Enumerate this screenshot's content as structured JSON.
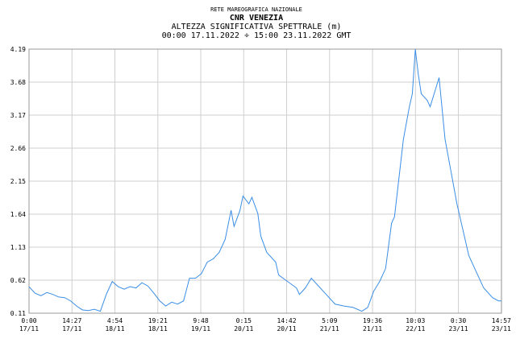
{
  "chart_data": {
    "type": "line",
    "supertitle": "RETE MAREOGRAFICA NAZIONALE",
    "title": "CNR VENEZIA",
    "subtitle": "ALTEZZA SIGNIFICATIVA SPETTRALE (m)",
    "period": "00:00 17.11.2022 ÷ 15:00 23.11.2022 GMT",
    "grid": true,
    "xlim": [
      "2022-11-17T00:00",
      "2022-11-23T15:00"
    ],
    "xticks": [
      {
        "value": "2022-11-17T00:00",
        "label": "0:00\n17/11"
      },
      {
        "value": "2022-11-17T14:27",
        "label": "14:27\n17/11"
      },
      {
        "value": "2022-11-18T04:54",
        "label": "4:54\n18/11"
      },
      {
        "value": "2022-11-18T19:21",
        "label": "19:21\n18/11"
      },
      {
        "value": "2022-11-19T09:48",
        "label": "9:48\n19/11"
      },
      {
        "value": "2022-11-20T00:15",
        "label": "0:15\n20/11"
      },
      {
        "value": "2022-11-20T14:42",
        "label": "14:42\n20/11"
      },
      {
        "value": "2022-11-21T05:09",
        "label": "5:09\n21/11"
      },
      {
        "value": "2022-11-21T19:36",
        "label": "19:36\n21/11"
      },
      {
        "value": "2022-11-22T10:03",
        "label": "10:03\n22/11"
      },
      {
        "value": "2022-11-23T00:30",
        "label": "0:30\n23/11"
      },
      {
        "value": "2022-11-23T14:57",
        "label": "14:57\n23/11"
      }
    ],
    "ylim": [
      0.11,
      4.19
    ],
    "yticks": [
      0.11,
      0.62,
      1.13,
      1.64,
      2.15,
      2.66,
      3.17,
      3.68,
      4.19
    ],
    "x": [
      "2022-11-17T00:00",
      "2022-11-17T02:00",
      "2022-11-17T04:00",
      "2022-11-17T06:00",
      "2022-11-17T08:00",
      "2022-11-17T10:00",
      "2022-11-17T12:00",
      "2022-11-17T14:00",
      "2022-11-17T16:00",
      "2022-11-17T18:00",
      "2022-11-17T20:00",
      "2022-11-17T22:00",
      "2022-11-18T00:00",
      "2022-11-18T02:00",
      "2022-11-18T04:00",
      "2022-11-18T06:00",
      "2022-11-18T08:00",
      "2022-11-18T10:00",
      "2022-11-18T12:00",
      "2022-11-18T14:00",
      "2022-11-18T16:00",
      "2022-11-18T18:00",
      "2022-11-18T20:00",
      "2022-11-18T22:00",
      "2022-11-19T00:00",
      "2022-11-19T02:00",
      "2022-11-19T04:00",
      "2022-11-19T06:00",
      "2022-11-19T08:00",
      "2022-11-19T10:00",
      "2022-11-19T12:00",
      "2022-11-19T14:00",
      "2022-11-19T16:00",
      "2022-11-19T18:00",
      "2022-11-19T20:00",
      "2022-11-19T21:00",
      "2022-11-19T23:00",
      "2022-11-20T00:00",
      "2022-11-20T02:00",
      "2022-11-20T03:00",
      "2022-11-20T05:00",
      "2022-11-20T06:00",
      "2022-11-20T08:00",
      "2022-11-20T11:00",
      "2022-11-20T12:00",
      "2022-11-20T15:00",
      "2022-11-20T18:00",
      "2022-11-20T19:00",
      "2022-11-20T21:00",
      "2022-11-20T23:00",
      "2022-11-21T01:00",
      "2022-11-21T04:00",
      "2022-11-21T07:00",
      "2022-11-21T10:00",
      "2022-11-21T13:00",
      "2022-11-21T16:00",
      "2022-11-21T18:00",
      "2022-11-21T20:00",
      "2022-11-21T22:00",
      "2022-11-22T00:00",
      "2022-11-22T02:00",
      "2022-11-22T03:00",
      "2022-11-22T06:00",
      "2022-11-22T08:00",
      "2022-11-22T09:00",
      "2022-11-22T10:00",
      "2022-11-22T11:00",
      "2022-11-22T12:00",
      "2022-11-22T14:00",
      "2022-11-22T15:00",
      "2022-11-22T18:00",
      "2022-11-22T20:00",
      "2022-11-22T22:00",
      "2022-11-23T00:00",
      "2022-11-23T02:00",
      "2022-11-23T04:00",
      "2022-11-23T07:00",
      "2022-11-23T09:00",
      "2022-11-23T12:00",
      "2022-11-23T14:00",
      "2022-11-23T15:00"
    ],
    "series": [
      {
        "color": "#3a8ee6",
        "values": [
          0.52,
          0.42,
          0.38,
          0.43,
          0.4,
          0.36,
          0.35,
          0.3,
          0.22,
          0.16,
          0.15,
          0.17,
          0.14,
          0.4,
          0.6,
          0.52,
          0.48,
          0.52,
          0.5,
          0.58,
          0.53,
          0.42,
          0.3,
          0.22,
          0.28,
          0.25,
          0.3,
          0.65,
          0.65,
          0.72,
          0.9,
          0.95,
          1.05,
          1.25,
          1.7,
          1.45,
          1.7,
          1.92,
          1.8,
          1.9,
          1.65,
          1.3,
          1.05,
          0.9,
          0.7,
          0.6,
          0.5,
          0.4,
          0.5,
          0.65,
          0.55,
          0.4,
          0.25,
          0.22,
          0.2,
          0.14,
          0.2,
          0.45,
          0.6,
          0.8,
          1.5,
          1.6,
          2.8,
          3.3,
          3.5,
          4.19,
          3.8,
          3.5,
          3.4,
          3.3,
          3.75,
          2.8,
          2.3,
          1.8,
          1.4,
          1.0,
          0.7,
          0.5,
          0.35,
          0.3,
          0.3
        ]
      }
    ]
  }
}
